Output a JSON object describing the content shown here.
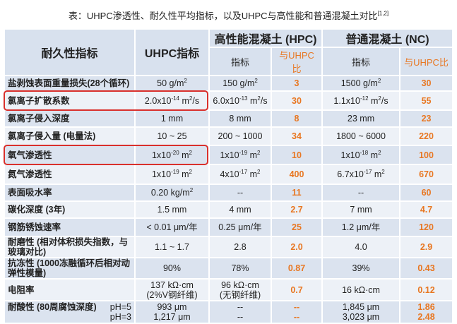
{
  "title": [
    "表：UHPC渗透性、耐久性平均指标，以及UHPC与高性能和普通混凝土对比",
    {
      "sup": "[1,2]"
    }
  ],
  "header": {
    "indicator": "耐久性指标",
    "uhpc": "UHPC指标",
    "hpc": "高性能混凝土 (HPC)",
    "hpc_value": "指标",
    "hpc_ratio": "与UHPC比",
    "nc": "普通混凝土 (NC)",
    "nc_value": "指标",
    "nc_ratio": "与UHPC比"
  },
  "table": {
    "rows": [
      {
        "label": [
          "盐剥蚀表面重量损失(28个循环)"
        ],
        "cells": [
          [
            [
              "50 g/m",
              {
                "sup": "2"
              }
            ]
          ],
          [
            [
              "150 g/m",
              {
                "sup": "2"
              }
            ]
          ],
          [
            [
              "3"
            ]
          ],
          [
            [
              "1500 g/m",
              {
                "sup": "2"
              }
            ]
          ],
          [
            [
              "30"
            ]
          ]
        ]
      },
      {
        "label": [
          "氯离子扩散系数"
        ],
        "highlight": true,
        "cells": [
          [
            [
              "2.0x10",
              {
                "sup": "-14"
              },
              " m",
              {
                "sup": "2"
              },
              "/s"
            ]
          ],
          [
            [
              "6.0x10",
              {
                "sup": "-13"
              },
              " m",
              {
                "sup": "2"
              },
              "/s"
            ]
          ],
          [
            [
              "30"
            ]
          ],
          [
            [
              "1.1x10",
              {
                "sup": "-12"
              },
              " m",
              {
                "sup": "2"
              },
              "/s"
            ]
          ],
          [
            [
              "55"
            ]
          ]
        ]
      },
      {
        "label": [
          "氯离子侵入深度"
        ],
        "cells": [
          [
            [
              "1 mm"
            ]
          ],
          [
            [
              "8 mm"
            ]
          ],
          [
            [
              "8"
            ]
          ],
          [
            [
              "23 mm"
            ]
          ],
          [
            [
              "23"
            ]
          ]
        ]
      },
      {
        "label": [
          "氯离子侵入量 (电量法)"
        ],
        "cells": [
          [
            [
              "10 ~ 25"
            ]
          ],
          [
            [
              "200 ~ 1000"
            ]
          ],
          [
            [
              "34"
            ]
          ],
          [
            [
              "1800 ~ 6000"
            ]
          ],
          [
            [
              "220"
            ]
          ]
        ]
      },
      {
        "label": [
          "氧气渗透性"
        ],
        "highlight": true,
        "cells": [
          [
            [
              "1x10",
              {
                "sup": "-20"
              },
              " m",
              {
                "sup": "2"
              }
            ]
          ],
          [
            [
              "1x10",
              {
                "sup": "-19"
              },
              " m",
              {
                "sup": "2"
              }
            ]
          ],
          [
            [
              "10"
            ]
          ],
          [
            [
              "1x10",
              {
                "sup": "-18"
              },
              " m",
              {
                "sup": "2"
              }
            ]
          ],
          [
            [
              "100"
            ]
          ]
        ]
      },
      {
        "label": [
          "氮气渗透性"
        ],
        "cells": [
          [
            [
              "1x10",
              {
                "sup": "-19"
              },
              " m",
              {
                "sup": "2"
              }
            ]
          ],
          [
            [
              "4x10",
              {
                "sup": "-17"
              },
              " m",
              {
                "sup": "2"
              }
            ]
          ],
          [
            [
              "400"
            ]
          ],
          [
            [
              "6.7x10",
              {
                "sup": "-17"
              },
              " m",
              {
                "sup": "2"
              }
            ]
          ],
          [
            [
              "670"
            ]
          ]
        ]
      },
      {
        "label": [
          "表面吸水率"
        ],
        "cells": [
          [
            [
              "0.20 kg/m",
              {
                "sup": "2"
              }
            ]
          ],
          [
            [
              "--"
            ]
          ],
          [
            [
              "11"
            ]
          ],
          [
            [
              "--"
            ]
          ],
          [
            [
              "60"
            ]
          ]
        ]
      },
      {
        "label": [
          "碳化深度 (3年)"
        ],
        "cells": [
          [
            [
              "1.5 mm"
            ]
          ],
          [
            [
              "4 mm"
            ]
          ],
          [
            [
              "2.7"
            ]
          ],
          [
            [
              "7 mm"
            ]
          ],
          [
            [
              "4.7"
            ]
          ]
        ]
      },
      {
        "label": [
          "钢筋锈蚀速率"
        ],
        "cells": [
          [
            [
              "< 0.01 μm/年"
            ]
          ],
          [
            [
              "0.25 μm/年"
            ]
          ],
          [
            [
              "25"
            ]
          ],
          [
            [
              "1.2 μm/年"
            ]
          ],
          [
            [
              "120"
            ]
          ]
        ]
      },
      {
        "label": [
          "耐磨性 (相对体积损失指数，与",
          "玻璃对比)"
        ],
        "cells": [
          [
            [
              "1.1 ~ 1.7"
            ]
          ],
          [
            [
              "2.8"
            ]
          ],
          [
            [
              "2.0"
            ]
          ],
          [
            [
              "4.0"
            ]
          ],
          [
            [
              "2.9"
            ]
          ]
        ]
      },
      {
        "label": [
          "抗冻性 (1000冻融循环后相对动",
          "弹性模量)"
        ],
        "cells": [
          [
            [
              "90%"
            ]
          ],
          [
            [
              "78%"
            ]
          ],
          [
            [
              "0.87"
            ]
          ],
          [
            [
              "39%"
            ]
          ],
          [
            [
              "0.43"
            ]
          ]
        ]
      },
      {
        "label": [
          "电阻率"
        ],
        "cells": [
          [
            [
              "137 kΩ·cm"
            ],
            [
              "(2%V钢纤维)"
            ]
          ],
          [
            [
              "96 kΩ·cm"
            ],
            [
              "(无钢纤维)"
            ]
          ],
          [
            [
              "0.7"
            ]
          ],
          [
            [
              "16 kΩ·cm"
            ]
          ],
          [
            [
              "0.12"
            ]
          ]
        ]
      },
      {
        "label": [
          "耐酸性 (80周腐蚀深度)"
        ],
        "sublabels": [
          "pH=5",
          "pH=3"
        ],
        "cells": [
          [
            [
              "993 μm"
            ],
            [
              "1,217 μm"
            ]
          ],
          [
            [
              "--"
            ],
            [
              "--"
            ]
          ],
          [
            [
              "--"
            ],
            [
              "--"
            ]
          ],
          [
            [
              "1,845 μm"
            ],
            [
              "3,023 μm"
            ]
          ],
          [
            [
              "1.86"
            ],
            [
              "2.48"
            ]
          ]
        ]
      }
    ]
  }
}
